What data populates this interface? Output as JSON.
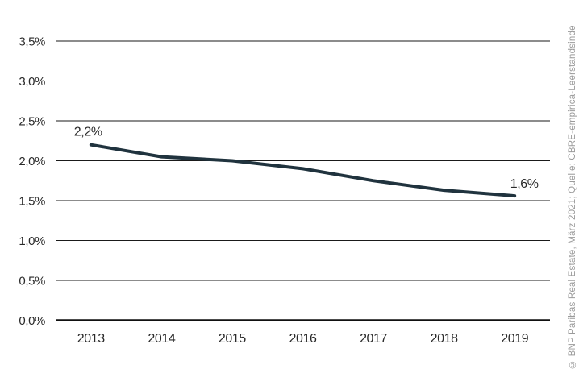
{
  "chart_data": {
    "type": "line",
    "title": "",
    "xlabel": "",
    "ylabel": "",
    "categories": [
      "2013",
      "2014",
      "2015",
      "2016",
      "2017",
      "2018",
      "2019"
    ],
    "values": [
      2.2,
      2.05,
      2.0,
      1.9,
      1.75,
      1.63,
      1.56
    ],
    "ylim": [
      0,
      3.5
    ],
    "ytick_step": 0.5,
    "ytick_labels_top_to_bottom": [
      "3,5%",
      "3,0%",
      "2,5%",
      "2,0%",
      "1,5%",
      "1,0%",
      "0,5%",
      "0,0%"
    ],
    "grid": "horizontal",
    "legend": "none",
    "point_labels": {
      "first": "2,2%",
      "last": "1,6%"
    }
  },
  "source_note": "© BNP Paribas Real Estate, März 2021; Quelle: CBRE-empirica-Leerstandsinde",
  "colors": {
    "background": "#ffffff",
    "gridline": "#1a1a1a",
    "axis": "#111111",
    "line": "#20333e",
    "label_text": "#2a2a2a",
    "source_text": "#9b9b9b"
  }
}
